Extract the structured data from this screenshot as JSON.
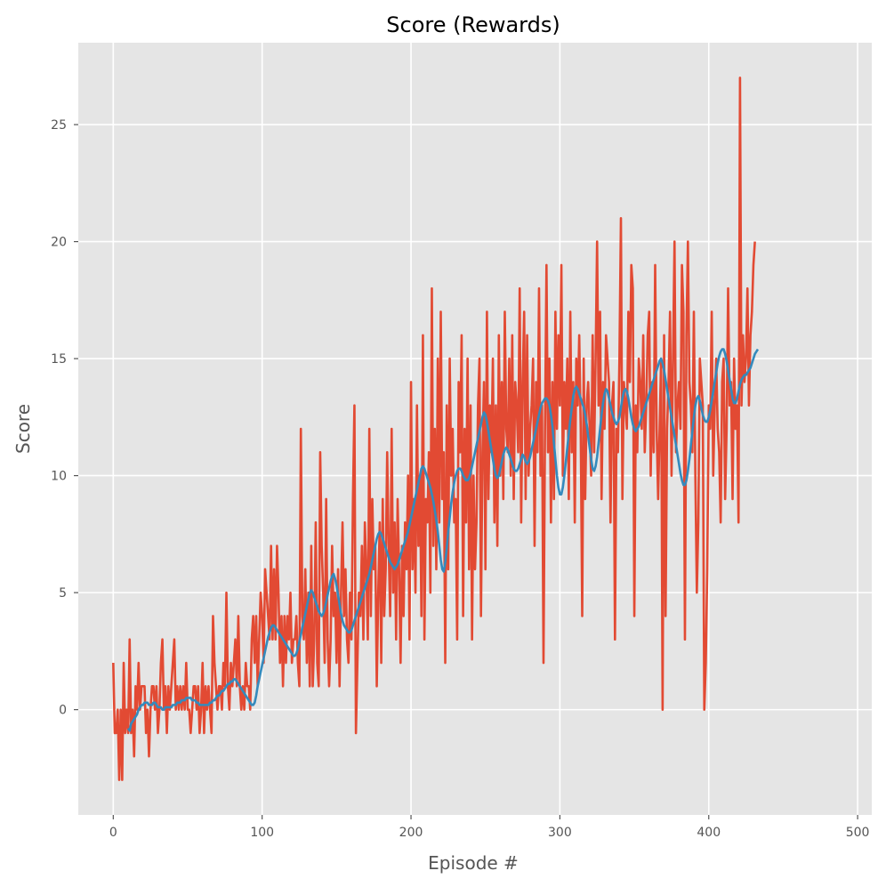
{
  "chart_data": {
    "type": "line",
    "title": "Score (Rewards)",
    "xlabel": "Episode #",
    "ylabel": "Score",
    "xlim": [
      -23.5,
      509.5
    ],
    "ylim": [
      -4.5,
      28.5
    ],
    "x_ticks": [
      0,
      100,
      200,
      300,
      400,
      500
    ],
    "y_ticks": [
      0,
      5,
      10,
      15,
      20,
      25
    ],
    "grid": true,
    "colors": {
      "plot_bg": "#e5e5e5",
      "grid": "#ffffff",
      "scores": "#e24a33",
      "average": "#348abd"
    },
    "series": [
      {
        "key": "scores",
        "values": [
          2,
          -1,
          -1,
          0,
          -3,
          0,
          -3,
          2,
          -1,
          0,
          -1,
          3,
          -1,
          0,
          -2,
          1,
          0,
          2,
          0,
          1,
          1,
          1,
          -1,
          0,
          -2,
          0,
          1,
          1,
          0,
          1,
          -1,
          0,
          2,
          3,
          0,
          1,
          -1,
          1,
          0,
          1,
          2,
          3,
          0,
          1,
          0,
          1,
          0,
          1,
          0,
          2,
          0,
          0,
          -1,
          0,
          1,
          1,
          0,
          1,
          -1,
          0,
          2,
          -1,
          1,
          0,
          1,
          0,
          -1,
          4,
          2,
          1,
          0,
          1,
          1,
          0,
          2,
          1,
          5,
          1,
          0,
          2,
          1,
          2,
          3,
          1,
          4,
          1,
          0,
          1,
          0,
          2,
          1,
          1,
          0,
          3,
          4,
          2,
          4,
          1,
          3,
          5,
          4,
          2,
          6,
          5,
          4,
          3,
          7,
          3,
          6,
          3,
          7,
          5,
          2,
          4,
          1,
          4,
          2,
          4,
          3,
          5,
          2,
          3,
          3,
          4,
          2,
          1,
          12,
          4,
          3,
          6,
          2,
          5,
          1,
          7,
          1,
          3,
          8,
          2,
          1,
          11,
          7,
          5,
          2,
          9,
          3,
          1,
          3,
          7,
          4,
          5,
          2,
          6,
          1,
          5,
          8,
          4,
          6,
          3,
          2,
          5,
          3,
          9,
          13,
          -1,
          2,
          5,
          4,
          7,
          3,
          8,
          6,
          3,
          12,
          4,
          9,
          6,
          7,
          1,
          5,
          8,
          2,
          9,
          4,
          6,
          11,
          7,
          4,
          12,
          5,
          8,
          3,
          9,
          6,
          2,
          7,
          4,
          8,
          6,
          10,
          3,
          14,
          6,
          9,
          5,
          13,
          7,
          10,
          4,
          16,
          3,
          9,
          8,
          11,
          5,
          18,
          7,
          12,
          6,
          15,
          8,
          17,
          9,
          11,
          2,
          13,
          6,
          15,
          10,
          12,
          8,
          9,
          3,
          14,
          11,
          16,
          4,
          12,
          8,
          15,
          6,
          13,
          3,
          10,
          6,
          8,
          13,
          15,
          4,
          11,
          14,
          6,
          17,
          9,
          13,
          11,
          15,
          8,
          13,
          7,
          16,
          10,
          14,
          9,
          17,
          12,
          11,
          15,
          10,
          16,
          9,
          14,
          13,
          11,
          18,
          8,
          14,
          17,
          9,
          16,
          10,
          12,
          13,
          15,
          7,
          14,
          11,
          18,
          10,
          13,
          2,
          12,
          19,
          11,
          15,
          8,
          14,
          9,
          17,
          12,
          16,
          13,
          19,
          10,
          14,
          12,
          15,
          9,
          17,
          11,
          14,
          8,
          15,
          13,
          16,
          12,
          4,
          15,
          9,
          13,
          14,
          12,
          10,
          16,
          11,
          15,
          20,
          13,
          17,
          9,
          14,
          12,
          16,
          15,
          14,
          8,
          13,
          14,
          3,
          12,
          11,
          15,
          21,
          9,
          14,
          13,
          12,
          17,
          14,
          19,
          18,
          4,
          13,
          11,
          15,
          14,
          12,
          16,
          11,
          13,
          16,
          17,
          10,
          14,
          11,
          19,
          12,
          9,
          12,
          15,
          0,
          16,
          4,
          12,
          14,
          17,
          10,
          15,
          20,
          11,
          13,
          14,
          12,
          19,
          17,
          3,
          16,
          20,
          14,
          13,
          11,
          17,
          10,
          5,
          8,
          15,
          14,
          13,
          0,
          2,
          6,
          13,
          12,
          17,
          10,
          13,
          15,
          12,
          11,
          8,
          14,
          15,
          9,
          12,
          18,
          13,
          14,
          9,
          15,
          12,
          13,
          8,
          27,
          13,
          16,
          14,
          15,
          18,
          13,
          16,
          17,
          19,
          20
        ],
        "color": "#e24a33"
      },
      {
        "key": "average",
        "x_start": 10,
        "values": [
          -0.8,
          -0.9,
          -0.6,
          -0.5,
          -0.4,
          -0.3,
          -0.2,
          0.0,
          0.1,
          0.2,
          0.2,
          0.3,
          0.3,
          0.3,
          0.2,
          0.2,
          0.2,
          0.3,
          0.3,
          0.2,
          0.1,
          0.1,
          0.1,
          0.0,
          0.0,
          0.1,
          0.1,
          0.1,
          0.1,
          0.1,
          0.2,
          0.2,
          0.2,
          0.3,
          0.3,
          0.3,
          0.4,
          0.4,
          0.4,
          0.5,
          0.5,
          0.5,
          0.5,
          0.4,
          0.4,
          0.4,
          0.3,
          0.3,
          0.2,
          0.2,
          0.2,
          0.2,
          0.2,
          0.2,
          0.2,
          0.3,
          0.3,
          0.4,
          0.4,
          0.5,
          0.6,
          0.6,
          0.7,
          0.8,
          0.8,
          0.9,
          1.0,
          1.1,
          1.1,
          1.2,
          1.2,
          1.3,
          1.3,
          1.2,
          1.1,
          1.0,
          0.9,
          0.8,
          0.7,
          0.6,
          0.5,
          0.4,
          0.3,
          0.2,
          0.2,
          0.3,
          0.6,
          1.0,
          1.3,
          1.6,
          1.9,
          2.2,
          2.5,
          2.8,
          3.1,
          3.3,
          3.5,
          3.6,
          3.6,
          3.5,
          3.4,
          3.3,
          3.2,
          3.1,
          3.0,
          2.9,
          2.8,
          2.7,
          2.6,
          2.5,
          2.4,
          2.3,
          2.3,
          2.4,
          2.6,
          2.9,
          3.2,
          3.5,
          3.8,
          4.1,
          4.4,
          4.7,
          5.0,
          5.1,
          5.0,
          4.8,
          4.6,
          4.4,
          4.2,
          4.1,
          4.0,
          4.1,
          4.3,
          4.6,
          4.9,
          5.2,
          5.5,
          5.7,
          5.8,
          5.6,
          5.3,
          4.9,
          4.5,
          4.1,
          3.8,
          3.6,
          3.5,
          3.4,
          3.3,
          3.3,
          3.4,
          3.6,
          3.8,
          4.0,
          4.2,
          4.4,
          4.6,
          4.8,
          5.0,
          5.2,
          5.4,
          5.6,
          5.8,
          6.1,
          6.4,
          6.7,
          7.0,
          7.3,
          7.5,
          7.6,
          7.5,
          7.3,
          7.1,
          6.9,
          6.7,
          6.5,
          6.3,
          6.2,
          6.1,
          6.0,
          6.1,
          6.2,
          6.4,
          6.6,
          6.8,
          7.0,
          7.2,
          7.4,
          7.6,
          7.9,
          8.2,
          8.5,
          8.8,
          9.1,
          9.4,
          9.7,
          10.0,
          10.3,
          10.4,
          10.3,
          10.1,
          9.9,
          9.7,
          9.5,
          9.2,
          8.9,
          8.5,
          8.1,
          7.6,
          7.0,
          6.4,
          6.0,
          5.9,
          6.3,
          6.9,
          7.6,
          8.2,
          8.8,
          9.3,
          9.7,
          10.0,
          10.2,
          10.3,
          10.3,
          10.2,
          10.0,
          9.9,
          9.8,
          9.8,
          9.9,
          10.1,
          10.4,
          10.7,
          11.0,
          11.3,
          11.6,
          11.9,
          12.2,
          12.5,
          12.7,
          12.6,
          12.3,
          11.9,
          11.5,
          11.1,
          10.7,
          10.3,
          10.0,
          9.9,
          10.0,
          10.3,
          10.6,
          10.9,
          11.1,
          11.2,
          11.1,
          10.9,
          10.7,
          10.5,
          10.3,
          10.2,
          10.2,
          10.3,
          10.5,
          10.7,
          10.9,
          10.8,
          10.6,
          10.5,
          10.6,
          10.8,
          11.1,
          11.4,
          11.7,
          12.0,
          12.3,
          12.6,
          12.9,
          13.1,
          13.2,
          13.3,
          13.3,
          13.2,
          13.0,
          12.6,
          12.1,
          11.4,
          10.7,
          10.0,
          9.5,
          9.2,
          9.2,
          9.5,
          10.0,
          10.6,
          11.2,
          11.8,
          12.4,
          12.9,
          13.4,
          13.7,
          13.8,
          13.7,
          13.5,
          13.3,
          13.1,
          12.9,
          12.6,
          12.2,
          11.7,
          11.2,
          10.7,
          10.3,
          10.2,
          10.4,
          10.8,
          11.4,
          12.0,
          12.6,
          13.1,
          13.5,
          13.7,
          13.6,
          13.3,
          13.0,
          12.7,
          12.5,
          12.3,
          12.2,
          12.3,
          12.5,
          12.9,
          13.3,
          13.6,
          13.7,
          13.6,
          13.3,
          12.9,
          12.5,
          12.2,
          12.0,
          11.9,
          12.0,
          12.1,
          12.3,
          12.5,
          12.7,
          12.9,
          13.1,
          13.3,
          13.5,
          13.7,
          13.9,
          14.1,
          14.3,
          14.5,
          14.7,
          14.9,
          15.0,
          14.8,
          14.5,
          14.1,
          13.7,
          13.3,
          12.9,
          12.5,
          12.1,
          11.7,
          11.3,
          10.9,
          10.5,
          10.1,
          9.8,
          9.6,
          9.6,
          9.8,
          10.2,
          10.7,
          11.3,
          11.9,
          12.5,
          13.0,
          13.3,
          13.4,
          13.2,
          12.9,
          12.6,
          12.4,
          12.3,
          12.3,
          12.5,
          12.8,
          13.2,
          13.6,
          14.0,
          14.4,
          14.8,
          15.1,
          15.3,
          15.4,
          15.4,
          15.2,
          14.9,
          14.5,
          14.1,
          13.7,
          13.3,
          13.1,
          13.1,
          13.3,
          13.6,
          13.9,
          14.1,
          14.2,
          14.3,
          14.3,
          14.4,
          14.5,
          14.6,
          14.8,
          15.0,
          15.2,
          15.3,
          15.4
        ],
        "color": "#348abd"
      }
    ]
  }
}
